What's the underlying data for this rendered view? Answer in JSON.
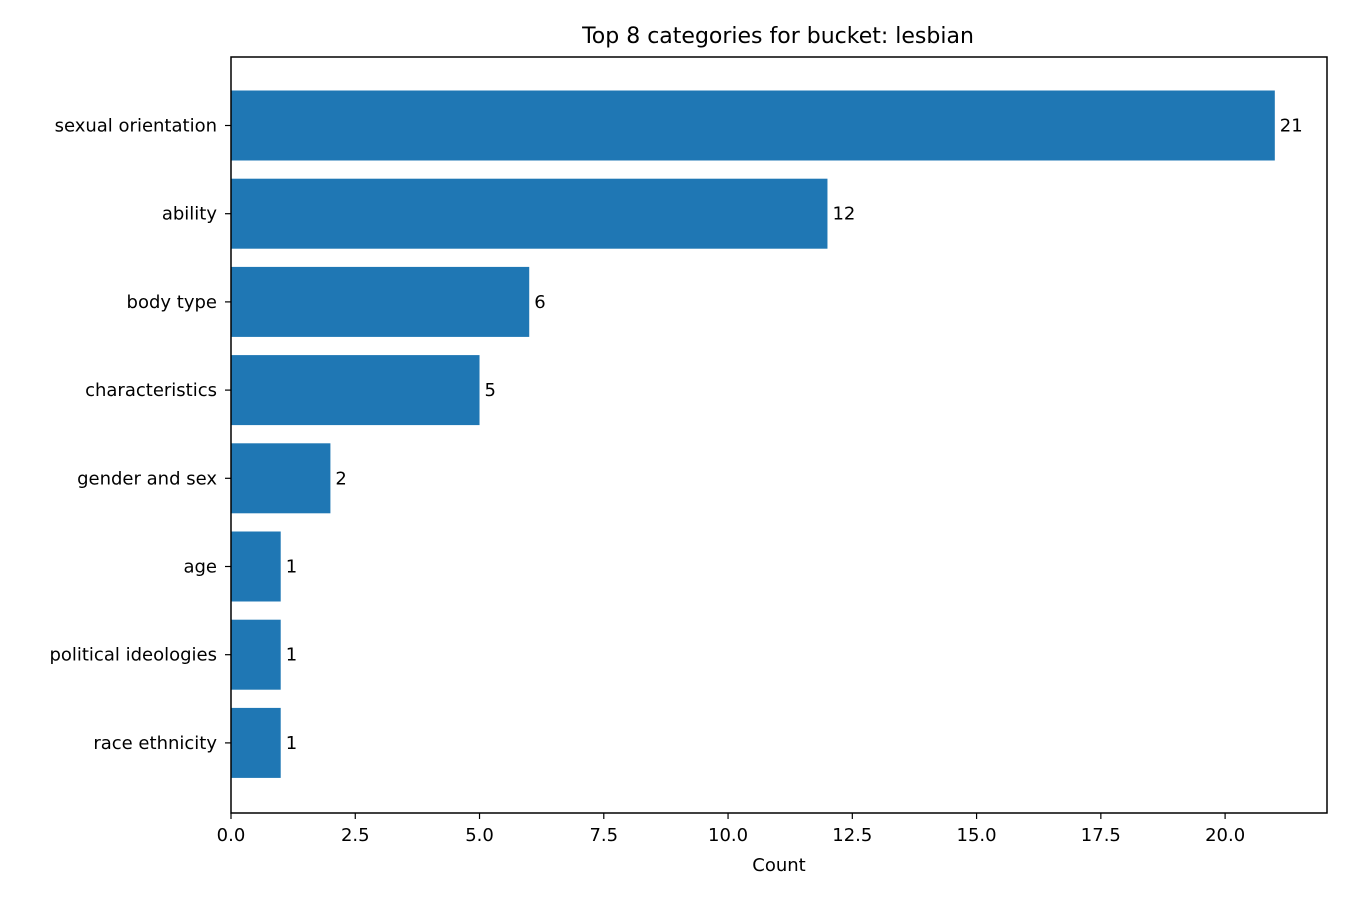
{
  "chart_data": {
    "type": "bar",
    "orientation": "horizontal",
    "title": "Top 8 categories for bucket: lesbian",
    "xlabel": "Count",
    "ylabel": "",
    "categories": [
      "sexual orientation",
      "ability",
      "body type",
      "characteristics",
      "gender and sex",
      "age",
      "political ideologies",
      "race ethnicity"
    ],
    "values": [
      21,
      12,
      6,
      5,
      2,
      1,
      1,
      1
    ],
    "value_labels": [
      "21",
      "12",
      "6",
      "5",
      "2",
      "1",
      "1",
      "1"
    ],
    "xlim": [
      0,
      22.05
    ],
    "x_ticks": [
      0,
      2.5,
      5,
      7.5,
      10,
      12.5,
      15,
      17.5,
      20
    ],
    "x_tick_labels": [
      "0.0",
      "2.5",
      "5.0",
      "7.5",
      "10.0",
      "12.5",
      "15.0",
      "17.5",
      "20.0"
    ],
    "bar_color": "#1f77b4",
    "grid": false,
    "legend": "none"
  }
}
